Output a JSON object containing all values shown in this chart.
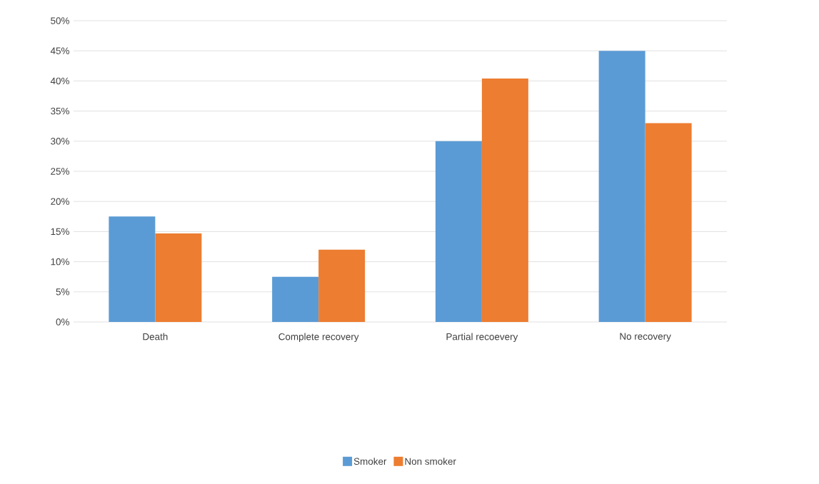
{
  "chart_data": {
    "type": "bar",
    "categories": [
      "Death",
      "Complete recovery",
      "Partial recoevery",
      "No recovery"
    ],
    "series": [
      {
        "name": "Smoker",
        "color": "#5b9bd5",
        "values": [
          17.5,
          7.5,
          30,
          45
        ]
      },
      {
        "name": "Non smoker",
        "color": "#ed7d31",
        "values": [
          14.7,
          12,
          40.4,
          33
        ]
      }
    ],
    "ylim": [
      0,
      50
    ],
    "yticks": [
      {
        "value": 0,
        "label": "0%"
      },
      {
        "value": 5,
        "label": "5%"
      },
      {
        "value": 10,
        "label": "10%"
      },
      {
        "value": 15,
        "label": "15%"
      },
      {
        "value": 20,
        "label": "20%"
      },
      {
        "value": 25,
        "label": "25%"
      },
      {
        "value": 30,
        "label": "30%"
      },
      {
        "value": 35,
        "label": "35%"
      },
      {
        "value": 40,
        "label": "40%"
      },
      {
        "value": 45,
        "label": "45%"
      },
      {
        "value": 50,
        "label": "50%"
      }
    ],
    "grid": "y",
    "legend": "bottom"
  }
}
